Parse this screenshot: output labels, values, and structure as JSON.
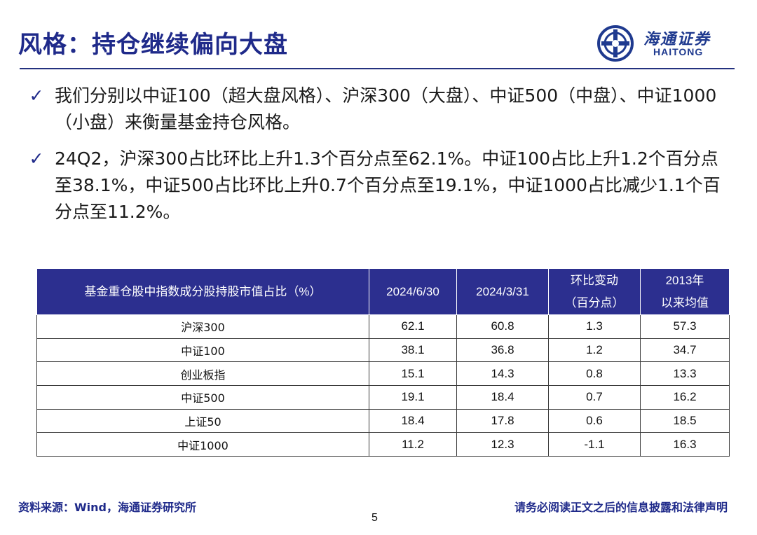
{
  "title": "风格：持仓继续偏向大盘",
  "logo": {
    "cn": "海通证券",
    "en": "HAITONG",
    "mark_icon": "haitong-logo-icon"
  },
  "bullets": [
    "我们分别以中证100（超大盘风格）、沪深300（大盘）、中证500（中盘）、中证1000（小盘）来衡量基金持仓风格。",
    "24Q2，沪深300占比环比上升1.3个百分点至62.1%。中证100占比上升1.2个百分点至38.1%，中证500占比环比上升0.7个百分点至19.1%，中证1000占比减少1.1个百分点至11.2%。"
  ],
  "table": {
    "headers": [
      {
        "l1": "基金重仓股中指数成分股持股市值占比（%）",
        "l2": ""
      },
      {
        "l1": "2024/6/30",
        "l2": ""
      },
      {
        "l1": "2024/3/31",
        "l2": ""
      },
      {
        "l1": "环比变动",
        "l2": "（百分点）"
      },
      {
        "l1": "2013年",
        "l2": "以来均值"
      }
    ],
    "rows": [
      [
        "沪深300",
        "62.1",
        "60.8",
        "1.3",
        "57.3"
      ],
      [
        "中证100",
        "38.1",
        "36.8",
        "1.2",
        "34.7"
      ],
      [
        "创业板指",
        "15.1",
        "14.3",
        "0.8",
        "13.3"
      ],
      [
        "中证500",
        "19.1",
        "18.4",
        "0.7",
        "16.2"
      ],
      [
        "上证50",
        "18.4",
        "17.8",
        "0.6",
        "18.5"
      ],
      [
        "中证1000",
        "11.2",
        "12.3",
        "-1.1",
        "16.3"
      ]
    ]
  },
  "footer": {
    "source": "资料来源：Wind，海通证券研究所",
    "disclaimer": "请务必阅读正文之后的信息披露和法律声明",
    "page": "5"
  },
  "colors": {
    "brand": "#1f2a8a",
    "header_bg": "#2c2f8f"
  }
}
